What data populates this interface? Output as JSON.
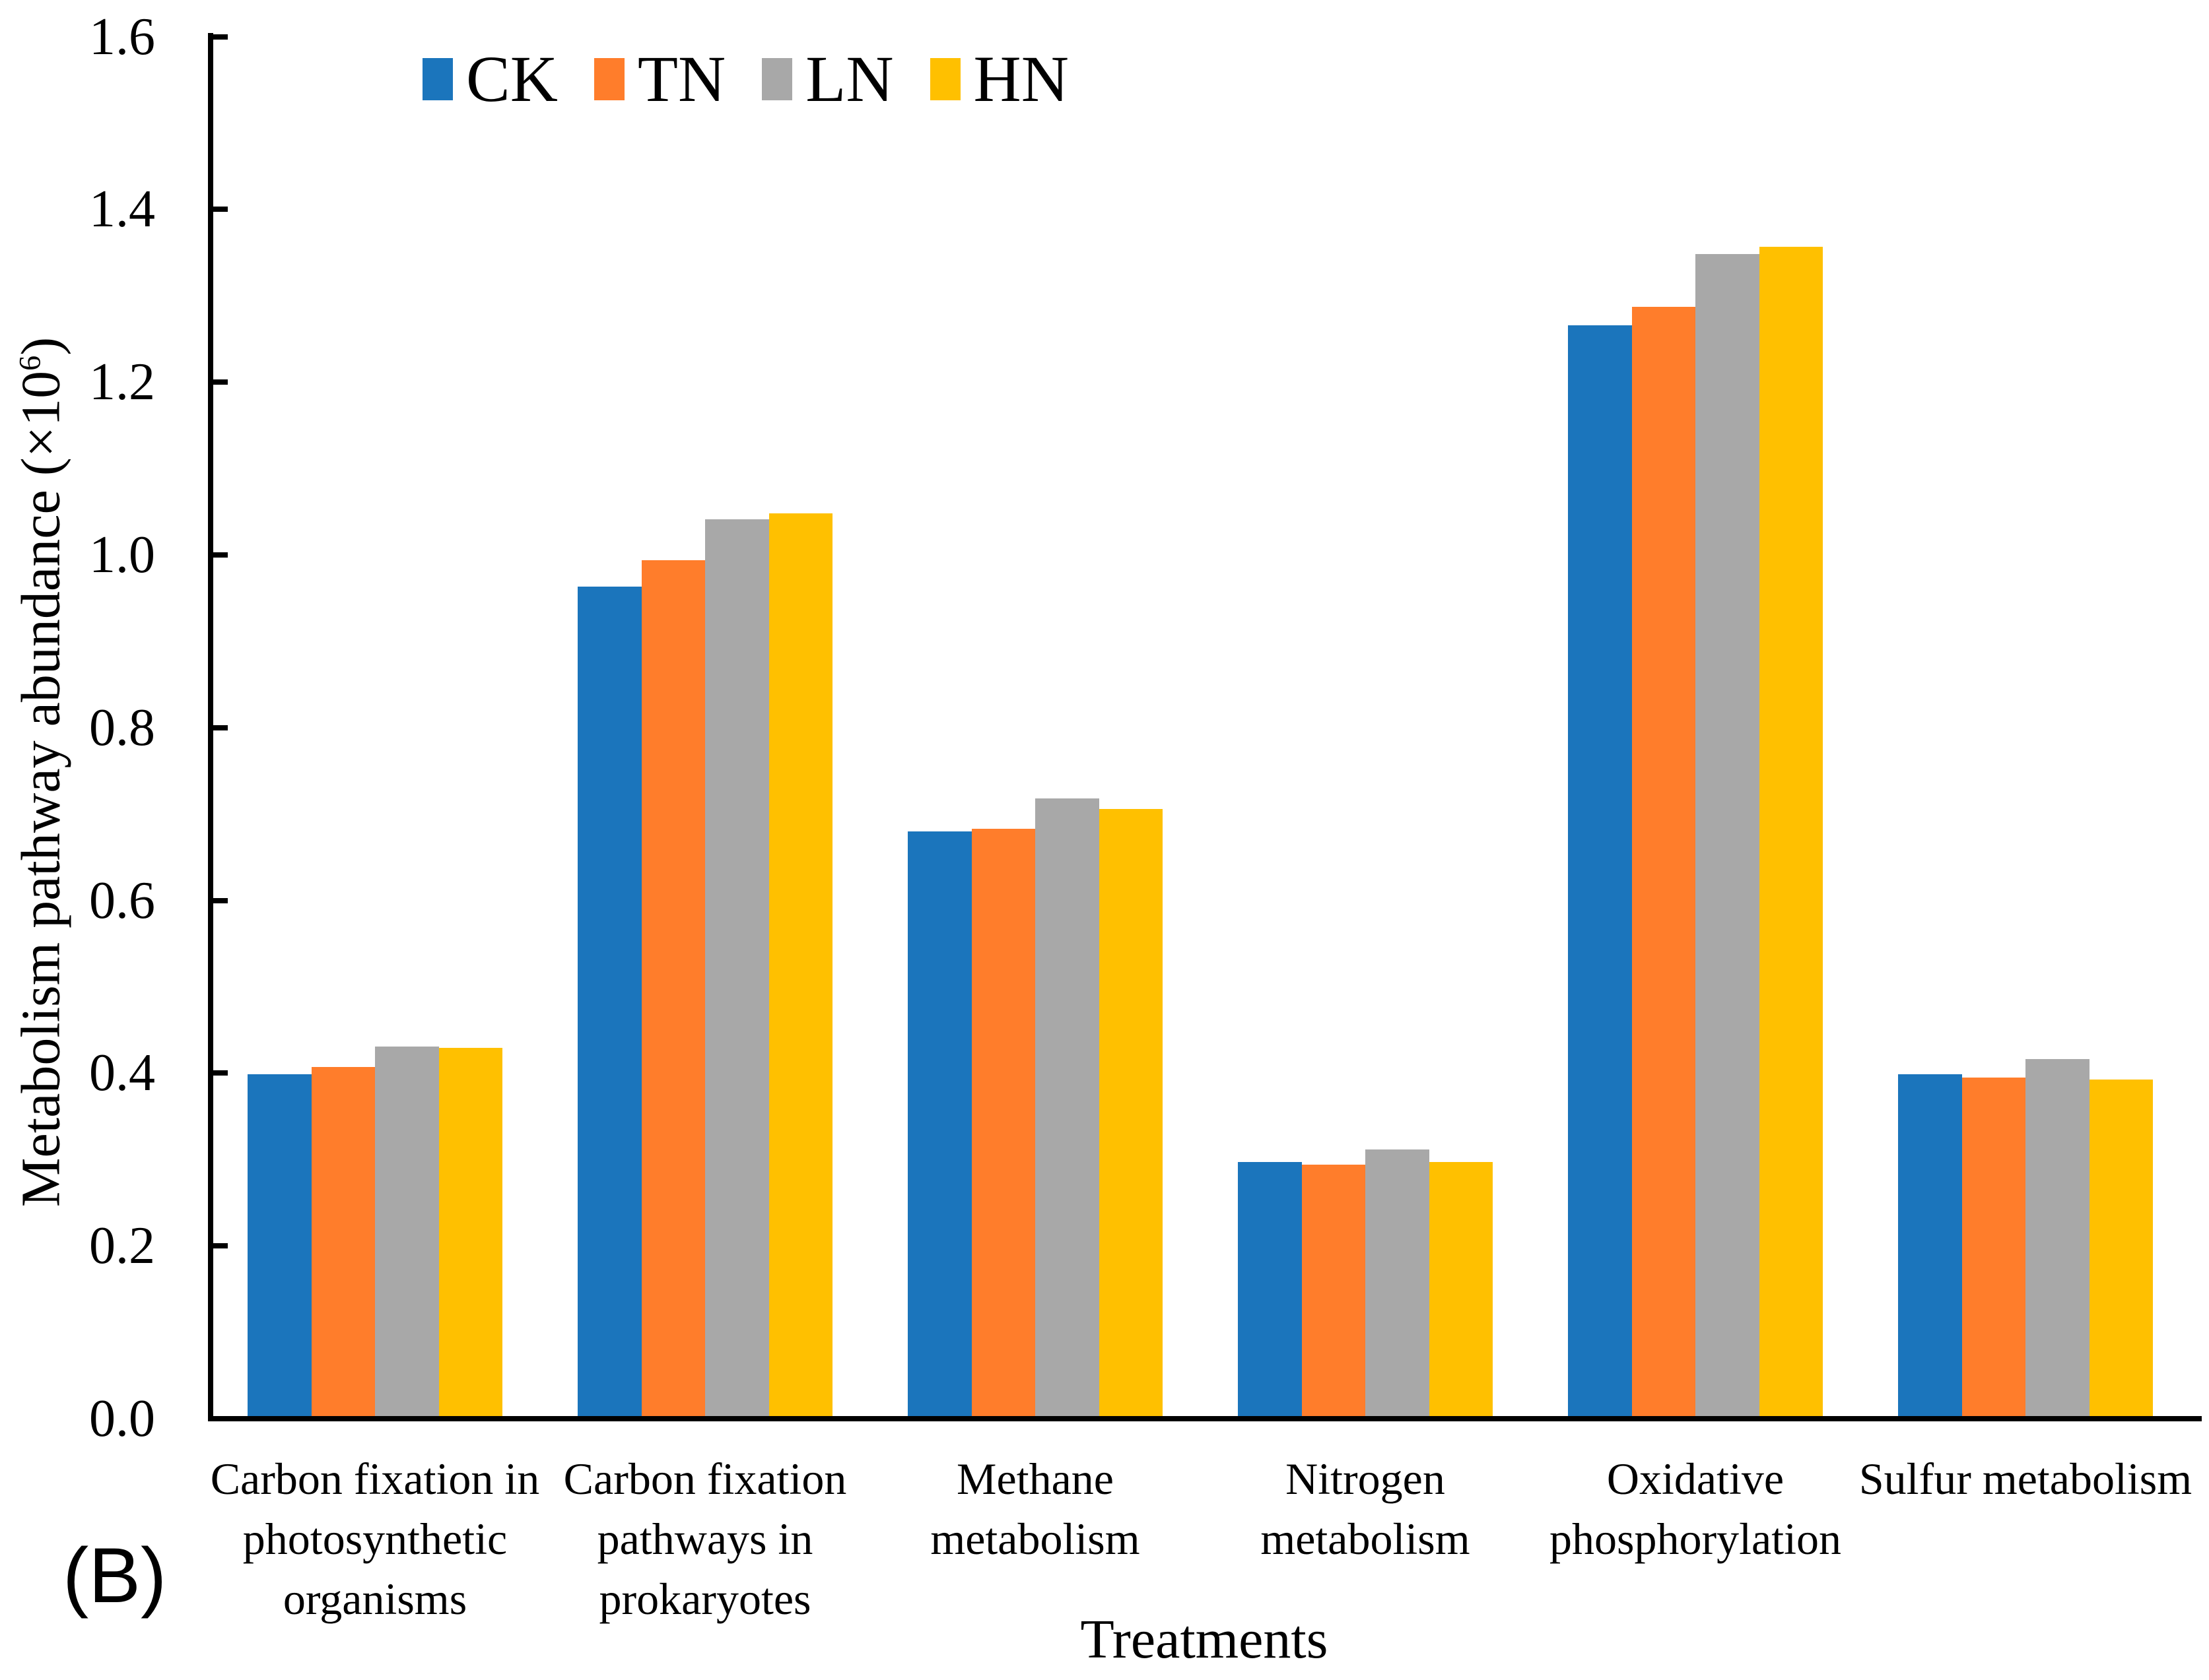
{
  "panel_label": "(B)",
  "chart_data": {
    "type": "bar",
    "title": "",
    "xlabel": "Treatments",
    "ylabel": "Metabolism pathway abundance (×10⁶)",
    "ylabel_parts": {
      "prefix": "Metabolism pathway abundance (×10",
      "superscript": "6",
      "suffix": ")"
    },
    "ylim": [
      0,
      1.6
    ],
    "ytick_step": 0.2,
    "yticks": [
      "0.0",
      "0.2",
      "0.4",
      "0.6",
      "0.8",
      "1.0",
      "1.2",
      "1.4",
      "1.6"
    ],
    "grid": false,
    "legend_position": "top",
    "bar_group_gap": "wide, 4 touching bars per group",
    "categories": [
      "Carbon fixation in photosynthetic organisms",
      "Carbon fixation pathways in prokaryotes",
      "Methane metabolism",
      "Nitrogen metabolism",
      "Oxidative phosphorylation",
      "Sulfur metabolism"
    ],
    "categories_wrapped": [
      "Carbon fixation in\nphotosynthetic\norganisms",
      "Carbon fixation\npathways in\nprokaryotes",
      "Methane\nmetabolism",
      "Nitrogen\nmetabolism",
      "Oxidative\nphosphorylation",
      "Sulfur metabolism"
    ],
    "series": [
      {
        "name": "CK",
        "color": "#1B75BC",
        "values": [
          0.399,
          0.963,
          0.68,
          0.297,
          1.266,
          0.399
        ]
      },
      {
        "name": "TN",
        "color": "#FF7D2B",
        "values": [
          0.407,
          0.994,
          0.683,
          0.294,
          1.287,
          0.395
        ]
      },
      {
        "name": "LN",
        "color": "#A8A8A8",
        "values": [
          0.431,
          1.041,
          0.718,
          0.312,
          1.348,
          0.416
        ]
      },
      {
        "name": "HN",
        "color": "#FFC000",
        "values": [
          0.429,
          1.048,
          0.706,
          0.297,
          1.357,
          0.393
        ]
      }
    ],
    "axis_color": "#000000",
    "text_color": "#000000"
  }
}
